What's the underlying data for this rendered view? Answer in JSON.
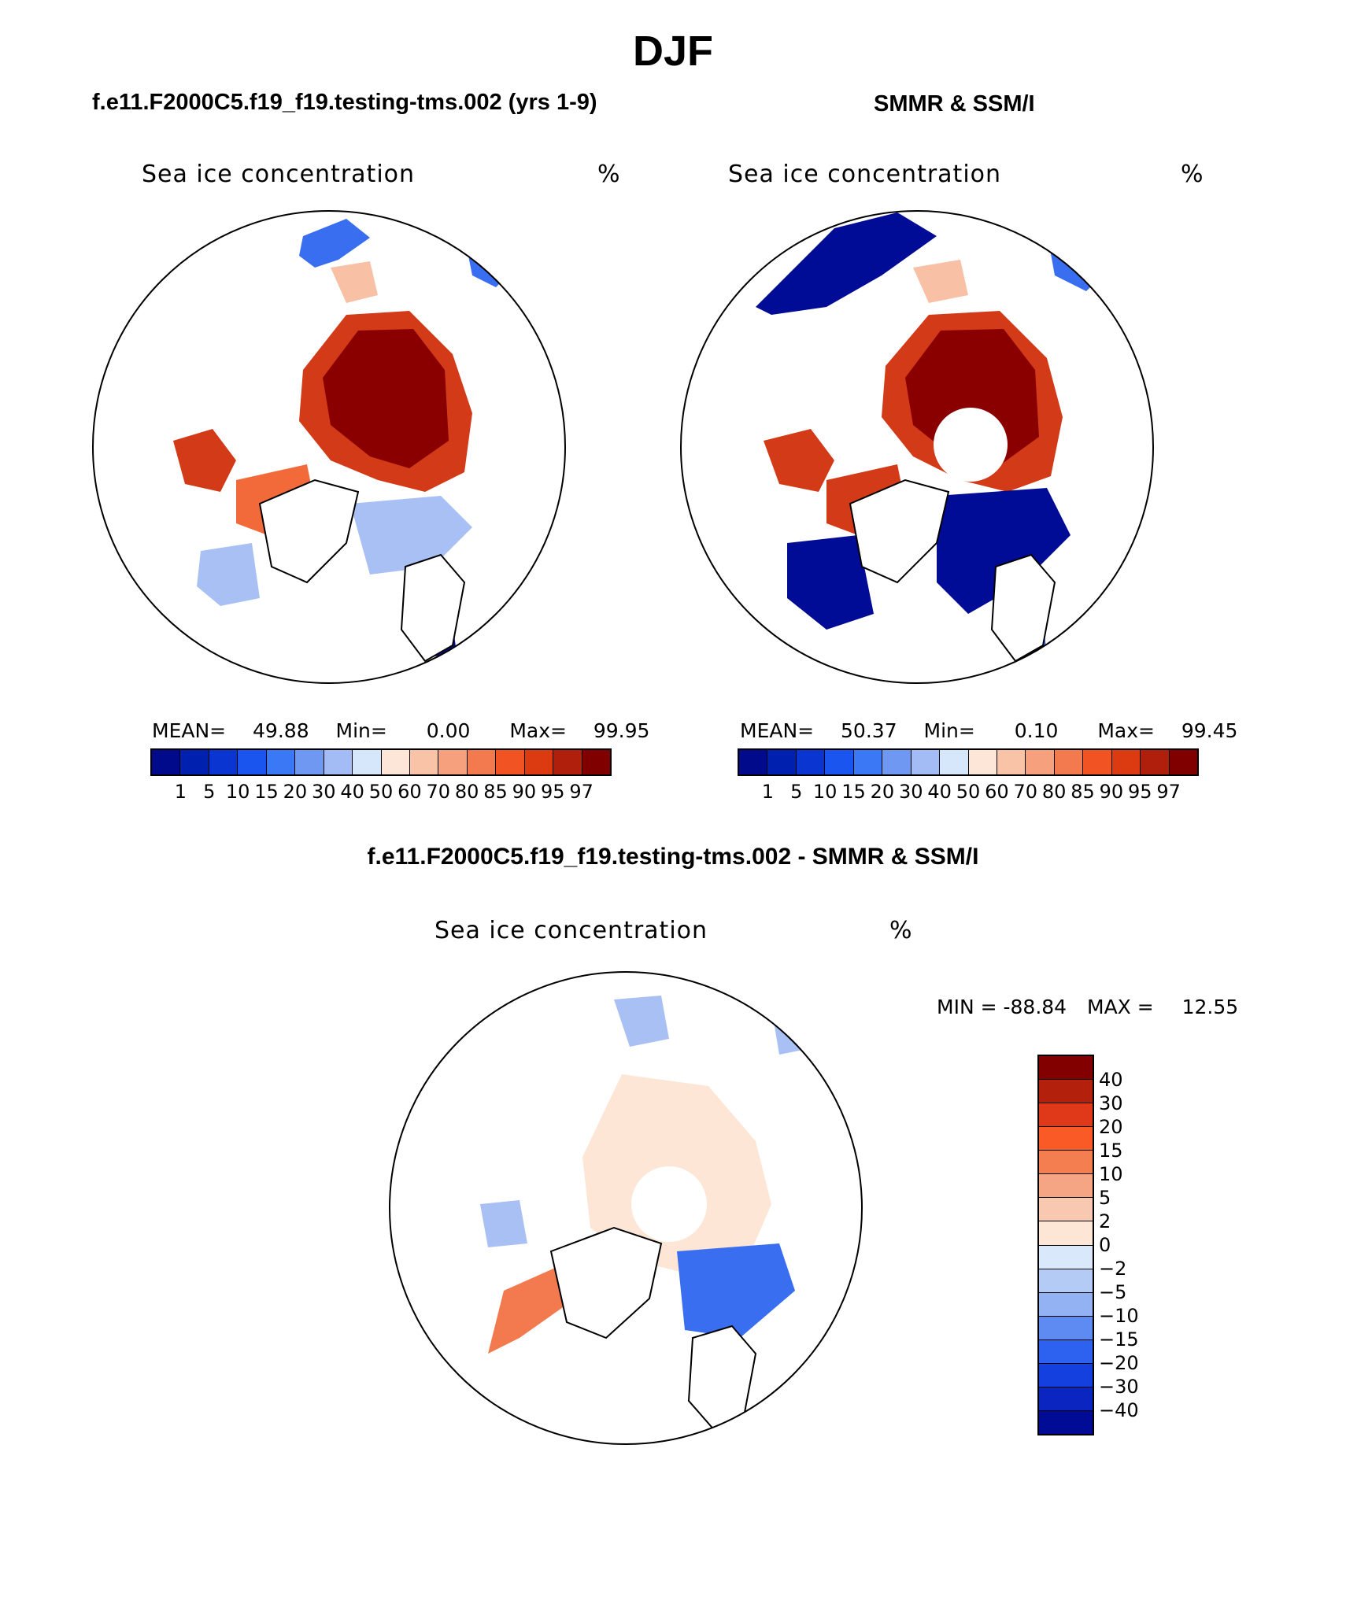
{
  "main_title": "DJF",
  "panels": [
    {
      "id": "model",
      "title": "f.e11.F2000C5.f19_f19.testing-tms.002 (yrs 1-9)",
      "variable": "Sea ice concentration",
      "units": "%",
      "stats": {
        "mean_label": "MEAN=",
        "mean": "49.88",
        "min_label": "Min=",
        "min": "0.00",
        "max_label": "Max=",
        "max": "99.95"
      }
    },
    {
      "id": "obs",
      "title": "SMMR & SSM/I",
      "variable": "Sea ice concentration",
      "units": "%",
      "stats": {
        "mean_label": "MEAN=",
        "mean": "50.37",
        "min_label": "Min=",
        "min": "0.10",
        "max_label": "Max=",
        "max": "99.45"
      }
    },
    {
      "id": "diff",
      "title": "f.e11.F2000C5.f19_f19.testing-tms.002 - SMMR & SSM/I",
      "variable": "Sea ice concentration",
      "units": "%",
      "stats": {
        "min_label": "MIN =",
        "min": "-88.84",
        "max_label": "MAX =",
        "max": "12.55"
      }
    }
  ],
  "concentration_colorbar": {
    "colors": [
      "#000a8a",
      "#0020b0",
      "#0a35d0",
      "#1b55f0",
      "#3a78f5",
      "#6e98f2",
      "#a3bcf6",
      "#d6e6fb",
      "#fde6d8",
      "#f9c3a8",
      "#f6a07e",
      "#f37a4f",
      "#f25322",
      "#dc3a10",
      "#b01f0b",
      "#800000"
    ],
    "labels": [
      "1",
      "5",
      "10",
      "15",
      "20",
      "30",
      "40",
      "50",
      "60",
      "70",
      "80",
      "85",
      "90",
      "95",
      "97"
    ]
  },
  "difference_colorbar": {
    "colors_top_to_bottom": [
      "#820000",
      "#b3200b",
      "#e0391a",
      "#fa5a25",
      "#f57e50",
      "#f6a584",
      "#f8c8b0",
      "#fde6d6",
      "#d9e9fb",
      "#b4cbf6",
      "#92b2f3",
      "#5e8bf1",
      "#2c62ef",
      "#1440e0",
      "#0a25c0",
      "#000c96"
    ],
    "labels_top_to_bottom": [
      "40",
      "30",
      "20",
      "15",
      "10",
      "5",
      "2",
      "0",
      "−2",
      "−5",
      "−10",
      "−15",
      "−20",
      "−30",
      "−40"
    ]
  },
  "map_colors": {
    "deep_red": "#8a0000",
    "mid_red": "#d23a18",
    "orange_red": "#f26a3a",
    "light_salmon": "#f8c0a4",
    "pale_peach": "#fde6d6",
    "light_blue": "#a8c0f4",
    "mid_blue": "#3a6ef0",
    "deep_blue": "#000c96"
  }
}
